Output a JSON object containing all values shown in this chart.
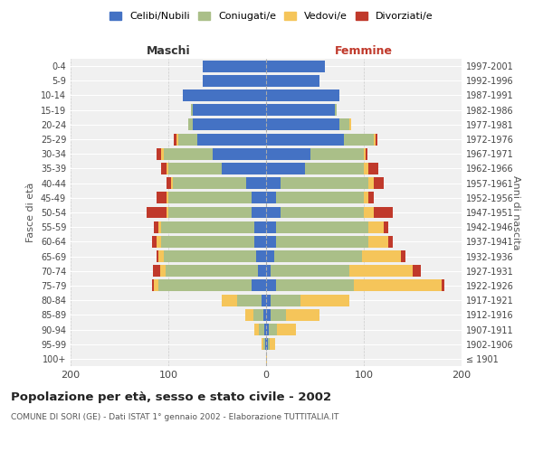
{
  "age_groups": [
    "100+",
    "95-99",
    "90-94",
    "85-89",
    "80-84",
    "75-79",
    "70-74",
    "65-69",
    "60-64",
    "55-59",
    "50-54",
    "45-49",
    "40-44",
    "35-39",
    "30-34",
    "25-29",
    "20-24",
    "15-19",
    "10-14",
    "5-9",
    "0-4"
  ],
  "birth_years": [
    "≤ 1901",
    "1902-1906",
    "1907-1911",
    "1912-1916",
    "1917-1921",
    "1922-1926",
    "1927-1931",
    "1932-1936",
    "1937-1941",
    "1942-1946",
    "1947-1951",
    "1952-1956",
    "1957-1961",
    "1962-1966",
    "1967-1971",
    "1972-1976",
    "1977-1981",
    "1982-1986",
    "1987-1991",
    "1992-1996",
    "1997-2001"
  ],
  "male": {
    "celibi": [
      0,
      1,
      2,
      3,
      5,
      15,
      8,
      10,
      12,
      12,
      15,
      15,
      20,
      45,
      55,
      70,
      75,
      75,
      85,
      65,
      65
    ],
    "coniugati": [
      0,
      2,
      5,
      10,
      25,
      95,
      95,
      95,
      95,
      95,
      85,
      85,
      75,
      55,
      50,
      20,
      5,
      2,
      0,
      0,
      0
    ],
    "vedovi": [
      0,
      2,
      5,
      8,
      15,
      5,
      5,
      5,
      5,
      3,
      2,
      2,
      2,
      2,
      2,
      2,
      0,
      0,
      0,
      0,
      0
    ],
    "divorziati": [
      0,
      0,
      0,
      0,
      0,
      2,
      8,
      2,
      5,
      5,
      20,
      10,
      5,
      5,
      5,
      2,
      0,
      0,
      0,
      0,
      0
    ]
  },
  "female": {
    "nubili": [
      0,
      2,
      3,
      5,
      5,
      10,
      5,
      8,
      10,
      10,
      15,
      10,
      15,
      40,
      45,
      80,
      75,
      70,
      75,
      55,
      60
    ],
    "coniugate": [
      0,
      2,
      8,
      15,
      30,
      80,
      80,
      90,
      95,
      95,
      85,
      90,
      90,
      60,
      55,
      30,
      10,
      2,
      0,
      0,
      0
    ],
    "vedove": [
      1,
      5,
      20,
      35,
      50,
      90,
      65,
      40,
      20,
      15,
      10,
      5,
      5,
      5,
      2,
      2,
      2,
      0,
      0,
      0,
      0
    ],
    "divorziate": [
      0,
      0,
      0,
      0,
      0,
      2,
      8,
      5,
      5,
      5,
      20,
      5,
      10,
      10,
      2,
      2,
      0,
      0,
      0,
      0,
      0
    ]
  },
  "colors": {
    "celibi": "#4472C4",
    "coniugati": "#AABF88",
    "vedovi": "#F5C55A",
    "divorziati": "#C0392B"
  },
  "title": "Popolazione per età, sesso e stato civile - 2002",
  "subtitle": "COMUNE DI SORI (GE) - Dati ISTAT 1° gennaio 2002 - Elaborazione TUTTITALIA.IT",
  "xlabel_left": "Maschi",
  "xlabel_right": "Femmine",
  "ylabel_left": "Fasce di età",
  "ylabel_right": "Anni di nascita",
  "xlim": 200,
  "legend_labels": [
    "Celibi/Nubili",
    "Coniugati/e",
    "Vedovi/e",
    "Divorziati/e"
  ],
  "background_color": "#ffffff",
  "bar_height": 0.8
}
